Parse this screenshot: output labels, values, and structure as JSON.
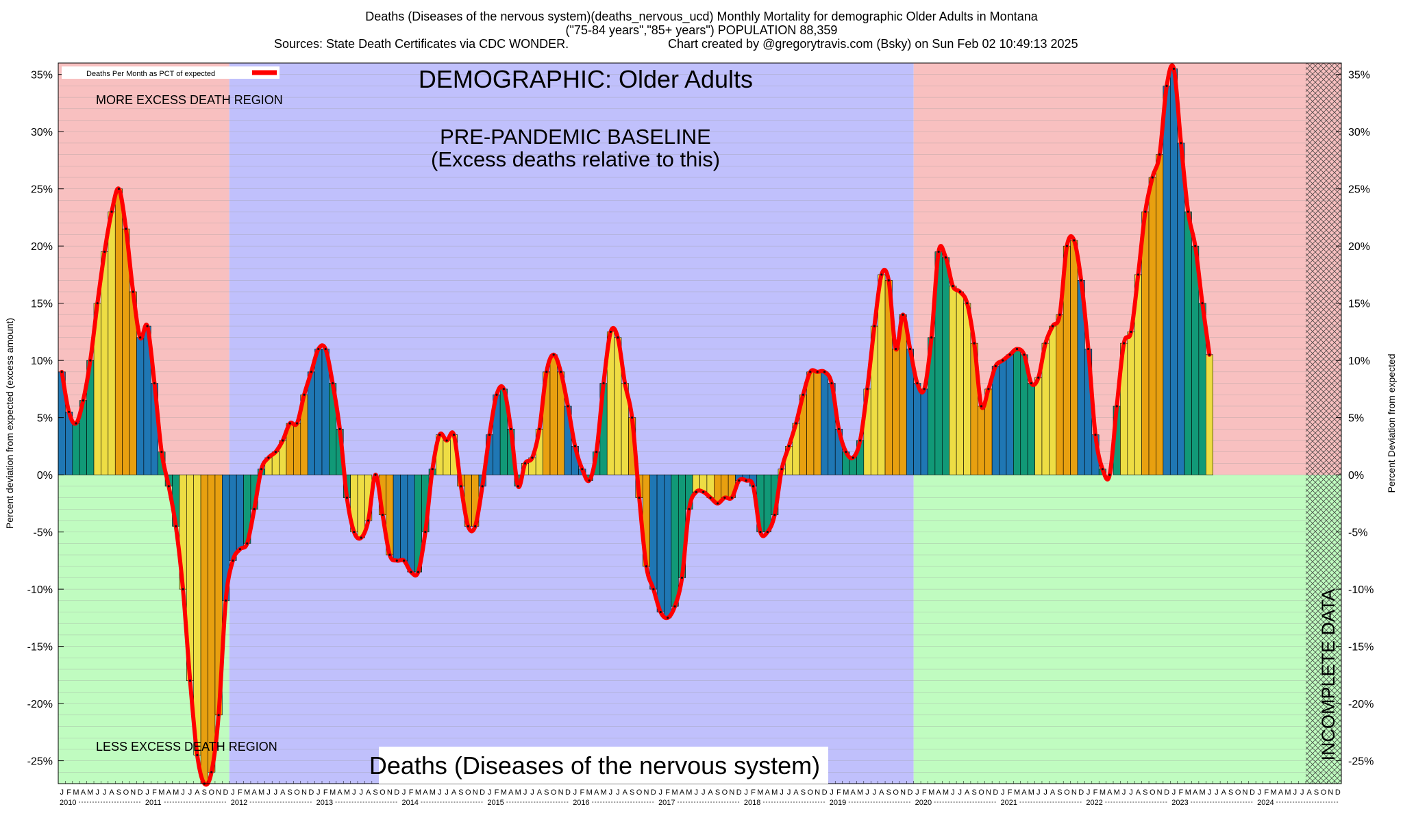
{
  "header": {
    "line1": "Deaths (Diseases of the nervous system)(deaths_nervous_ucd) Monthly Mortality for demographic Older Adults in Montana",
    "line2": "(\"75-84 years\",\"85+ years\") POPULATION 88,359",
    "line3_left": "Sources: State Death Certificates via CDC WONDER.",
    "line3_right": "Chart created by @gregorytravis.com (Bsky) on Sun Feb 02 10:49:13 2025"
  },
  "annotations": {
    "demographic": "DEMOGRAPHIC: Older Adults",
    "baseline_line1": "PRE-PANDEMIC BASELINE",
    "baseline_line2": "(Excess deaths relative to this)",
    "more_region": "MORE EXCESS DEATH REGION",
    "less_region": "LESS EXCESS DEATH REGION",
    "bottom_title": "Deaths (Diseases of the nervous system)",
    "incomplete": "INCOMPLETE DATA",
    "legend": "Deaths Per Month as PCT of expected"
  },
  "colors": {
    "excess_region": "#f8c0c0",
    "less_region": "#c0fcc0",
    "baseline_region": "#c0c0fc",
    "line": "#ff0000",
    "bar_winter": "#1f77b4",
    "bar_spring": "#119977",
    "bar_summer": "#eedd44",
    "bar_autumn": "#e8a010"
  },
  "chart_data": {
    "type": "bar",
    "ylabel_left": "Percent deviation from expected (excess amount)",
    "ylabel_right": "Percent Deviation from expected",
    "ylim": [
      -27,
      36
    ],
    "y_ticks": [
      35,
      30,
      25,
      20,
      15,
      10,
      5,
      0,
      -5,
      -10,
      -15,
      -20,
      -25
    ],
    "y_tick_labels": [
      "35%",
      "30%",
      "25%",
      "20%",
      "15%",
      "10%",
      "5%",
      "0%",
      "-5%",
      "-10%",
      "-15%",
      "-20%",
      "-25%"
    ],
    "month_letters": [
      "J",
      "F",
      "M",
      "A",
      "M",
      "J",
      "J",
      "A",
      "S",
      "O",
      "N",
      "D"
    ],
    "years": [
      "2010",
      "2011",
      "2012",
      "2013",
      "2014",
      "2015",
      "2016",
      "2017",
      "2018",
      "2019",
      "2020",
      "2021",
      "2022",
      "2023",
      "2024"
    ],
    "baseline_period": [
      "2012-01",
      "2019-12"
    ],
    "incomplete_period": [
      "2024-08",
      "2024-12"
    ],
    "series": [
      {
        "name": "Deaths Per Month as PCT of expected",
        "start": "2010-01",
        "values": [
          9,
          5.5,
          4.5,
          6.5,
          10,
          15,
          19.5,
          23,
          25,
          21.5,
          16,
          12,
          13,
          8,
          2,
          -1,
          -4.5,
          -10,
          -18,
          -24.5,
          -27,
          -26,
          -21,
          -11,
          -7.5,
          -6.5,
          -6,
          -3,
          0.5,
          1.5,
          2,
          3,
          4.5,
          4.5,
          7,
          9,
          11,
          11,
          8,
          4,
          -2,
          -5,
          -5.5,
          -4,
          0,
          -3.5,
          -7,
          -7.5,
          -7.5,
          -8.5,
          -8.5,
          -5,
          0.5,
          3.5,
          3,
          3.5,
          -1,
          -4.5,
          -4.5,
          -1,
          3.5,
          7,
          7.5,
          4,
          -1,
          1,
          1.5,
          4,
          9,
          10.5,
          9,
          6,
          2.5,
          0.5,
          -0.5,
          2,
          8,
          12.5,
          12,
          8,
          5,
          -2,
          -8,
          -10,
          -12,
          -12.5,
          -11.5,
          -9,
          -3,
          -1.5,
          -1.5,
          -2,
          -2.5,
          -2,
          -2,
          -0.5,
          -0.5,
          -1,
          -5,
          -5,
          -3.5,
          0.5,
          2.5,
          4.5,
          7,
          9,
          9,
          9,
          8,
          4,
          2,
          1.5,
          3,
          7.5,
          13,
          17.5,
          17,
          11,
          14,
          11,
          8,
          7.5,
          12,
          19.5,
          19,
          16.5,
          16,
          15,
          11.5,
          6,
          7.5,
          9.5,
          10,
          10.5,
          11,
          10.5,
          8,
          8.5,
          11.5,
          13,
          14,
          20,
          20.5,
          17,
          11,
          3.5,
          0.5,
          0,
          6,
          11.5,
          12.5,
          17.5,
          23,
          26,
          28,
          34,
          35.5,
          29,
          23,
          20,
          15,
          10.5
        ]
      }
    ]
  }
}
